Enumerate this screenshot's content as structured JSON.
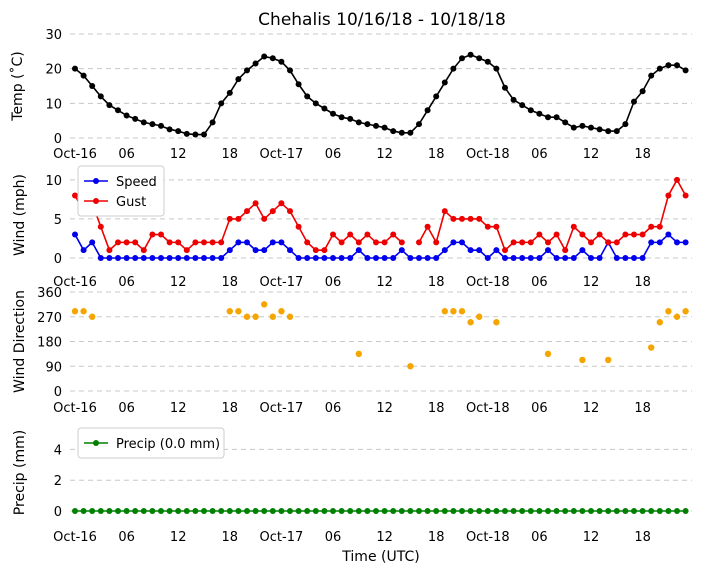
{
  "chart_data": [
    {
      "type": "line",
      "title": "Chehalis 10/16/18 - 10/18/18",
      "ylabel": "Temp (˚C)",
      "ylim": [
        0,
        30
      ],
      "yticks": [
        0,
        10,
        20,
        30
      ],
      "grid": true,
      "x_tick_labels": [
        "Oct-16",
        "06",
        "12",
        "18",
        "Oct-17",
        "06",
        "12",
        "18",
        "Oct-18",
        "06",
        "12",
        "18"
      ],
      "series": [
        {
          "color": "#000000",
          "values": [
            20,
            18,
            15,
            12,
            9.5,
            8,
            6.5,
            5.5,
            4.5,
            4,
            3.5,
            2.5,
            2,
            1.2,
            1,
            1,
            4.5,
            10,
            13,
            17,
            19.5,
            21.5,
            23.5,
            23,
            22,
            19.5,
            15.5,
            12,
            10,
            8.5,
            7,
            6,
            5.5,
            4.5,
            4,
            3.5,
            3,
            2,
            1.5,
            1.5,
            4,
            8,
            12,
            16,
            20,
            23,
            24,
            23,
            22,
            20,
            14.5,
            11,
            9.5,
            8,
            7,
            6,
            6,
            4.5,
            3,
            3.5,
            3,
            2.5,
            2,
            2,
            4,
            10.5,
            13.5,
            18,
            20,
            21,
            21,
            19.5
          ]
        }
      ]
    },
    {
      "type": "line",
      "ylabel": "Wind (mph)",
      "ylim": [
        0,
        11
      ],
      "yticks": [
        0,
        5,
        10
      ],
      "grid": true,
      "legend": "top-left",
      "x_tick_labels": [
        "Oct-16",
        "06",
        "12",
        "18",
        "Oct-17",
        "06",
        "12",
        "18",
        "Oct-18",
        "06",
        "12",
        "18"
      ],
      "series": [
        {
          "name": "Speed",
          "color": "#0000ee",
          "values": [
            3,
            1,
            2,
            0,
            0,
            0,
            0,
            0,
            0,
            0,
            0,
            0,
            0,
            0,
            0,
            0,
            0,
            0,
            1,
            2,
            2,
            1,
            1,
            2,
            2,
            1,
            0,
            0,
            0,
            0,
            0,
            0,
            0,
            1,
            0,
            0,
            0,
            0,
            1,
            0,
            0,
            0,
            0,
            1,
            2,
            2,
            1,
            1,
            0,
            1,
            0,
            0,
            0,
            0,
            0,
            1,
            0,
            0,
            0,
            1,
            0,
            0,
            2,
            0,
            0,
            0,
            0,
            2,
            2,
            3,
            2,
            2
          ]
        },
        {
          "name": "Gust",
          "color": "#ee0000",
          "values": [
            8,
            6,
            7,
            4,
            1,
            2,
            2,
            2,
            1,
            3,
            3,
            2,
            2,
            1,
            2,
            2,
            2,
            2,
            5,
            5,
            6,
            7,
            5,
            6,
            7,
            6,
            4,
            2,
            1,
            1,
            3,
            2,
            3,
            2,
            3,
            2,
            2,
            3,
            2,
            null,
            2,
            4,
            2,
            6,
            5,
            5,
            5,
            5,
            4,
            4,
            1,
            2,
            2,
            2,
            3,
            2,
            3,
            1,
            4,
            3,
            2,
            3,
            2,
            2,
            3,
            3,
            3,
            4,
            4,
            8,
            10,
            8
          ]
        }
      ]
    },
    {
      "type": "scatter",
      "ylabel": "Wind Direction",
      "ylim": [
        0,
        360
      ],
      "yticks": [
        0,
        90,
        180,
        270,
        360
      ],
      "grid": true,
      "x_tick_labels": [
        "Oct-16",
        "06",
        "12",
        "18",
        "Oct-17",
        "06",
        "12",
        "18",
        "Oct-18",
        "06",
        "12",
        "18"
      ],
      "series": [
        {
          "color": "#f5a500",
          "points": [
            [
              0,
              290
            ],
            [
              1,
              290
            ],
            [
              2,
              270
            ],
            [
              18,
              290
            ],
            [
              19,
              290
            ],
            [
              20,
              270
            ],
            [
              21,
              270
            ],
            [
              22,
              315
            ],
            [
              23,
              270
            ],
            [
              24,
              290
            ],
            [
              25,
              270
            ],
            [
              33,
              135
            ],
            [
              39,
              90
            ],
            [
              43,
              290
            ],
            [
              44,
              290
            ],
            [
              45,
              290
            ],
            [
              46,
              250
            ],
            [
              47,
              270
            ],
            [
              49,
              250
            ],
            [
              55,
              135
            ],
            [
              59,
              113
            ],
            [
              62,
              113
            ],
            [
              67,
              158
            ],
            [
              68,
              250
            ],
            [
              69,
              290
            ],
            [
              70,
              270
            ],
            [
              71,
              290
            ]
          ]
        }
      ]
    },
    {
      "type": "line",
      "ylabel": "Precip (mm)",
      "xlabel": "Time (UTC)",
      "ylim": [
        0,
        5
      ],
      "yticks": [
        0,
        2,
        4
      ],
      "grid": true,
      "legend": "top-left",
      "x_tick_labels": [
        "Oct-16",
        "06",
        "12",
        "18",
        "Oct-17",
        "06",
        "12",
        "18",
        "Oct-18",
        "06",
        "12",
        "18"
      ],
      "series": [
        {
          "name": "Precip (0.0 mm)",
          "color": "#008000",
          "values": [
            0,
            0,
            0,
            0,
            0,
            0,
            0,
            0,
            0,
            0,
            0,
            0,
            0,
            0,
            0,
            0,
            0,
            0,
            0,
            0,
            0,
            0,
            0,
            0,
            0,
            0,
            0,
            0,
            0,
            0,
            0,
            0,
            0,
            0,
            0,
            0,
            0,
            0,
            0,
            0,
            0,
            0,
            0,
            0,
            0,
            0,
            0,
            0,
            0,
            0,
            0,
            0,
            0,
            0,
            0,
            0,
            0,
            0,
            0,
            0,
            0,
            0,
            0,
            0,
            0,
            0,
            0,
            0,
            0,
            0,
            0,
            0
          ]
        }
      ]
    }
  ]
}
